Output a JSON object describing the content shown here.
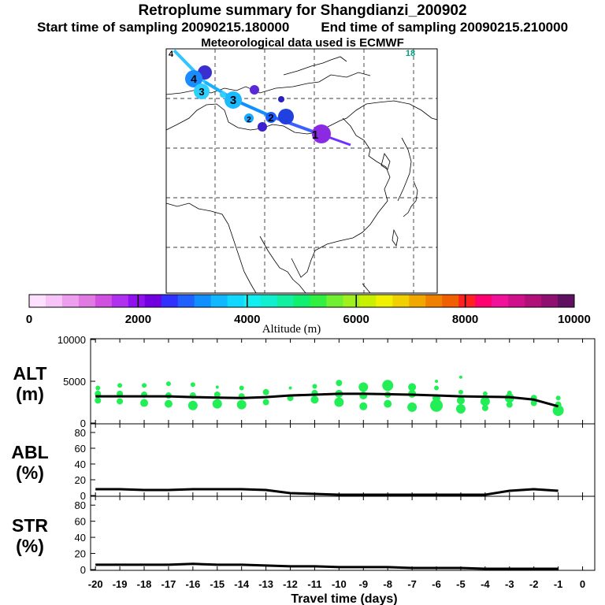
{
  "titles": {
    "main": "Retroplume summary for Shangdianzi_200902",
    "start": "Start time of sampling 20090215.180000",
    "end": "End time of sampling 20090215.210000",
    "met": "Meteorological data used is ECMWF"
  },
  "map": {
    "day_markers": [
      {
        "label": "1",
        "color": "#8a2be2"
      },
      {
        "label": "2",
        "color": "#2040ff"
      },
      {
        "label": "2",
        "color": "#1a8cff"
      },
      {
        "label": "3",
        "color": "#1abaff"
      },
      {
        "label": "3",
        "color": "#2fd0ff"
      },
      {
        "label": "4",
        "color": "#1a8cff"
      },
      {
        "label": "4",
        "color": "#33ccff"
      },
      {
        "label": "18",
        "color": "#00e5a0"
      }
    ]
  },
  "colorbar": {
    "label": "Altitude (m)",
    "tick_labels": [
      "0",
      "2000",
      "4000",
      "6000",
      "8000",
      "10000"
    ],
    "range": [
      0,
      10000
    ],
    "colors": [
      "#fde0fd",
      "#f6c4f6",
      "#ee9eee",
      "#e07ae0",
      "#d050e0",
      "#b030f0",
      "#9010f0",
      "#7000e0",
      "#3030ff",
      "#2060ff",
      "#1090ff",
      "#10b8ff",
      "#10d8ff",
      "#10f0f0",
      "#10f0d0",
      "#10f0a0",
      "#10f070",
      "#30f040",
      "#70f030",
      "#a0f020",
      "#c8f000",
      "#f0f000",
      "#f0d000",
      "#f0a800",
      "#f08000",
      "#f06000",
      "#ff2020",
      "#ff0070",
      "#f0109a",
      "#d0108a",
      "#b01078",
      "#901070",
      "#601060"
    ]
  },
  "chart_data": [
    {
      "type": "line",
      "title": "ALT (m)",
      "ylabel_top": "ALT",
      "ylabel_bottom": "(m)",
      "ylim": [
        0,
        10000
      ],
      "ytick_labels": [
        "10000",
        "5000",
        "0"
      ],
      "x": [
        -20,
        -19,
        -18,
        -17,
        -16,
        -15,
        -14,
        -13,
        -12,
        -11,
        -10,
        -9,
        -8,
        -7,
        -6,
        -5,
        -4,
        -3,
        -2,
        -1
      ],
      "line": [
        3200,
        3200,
        3200,
        3200,
        3100,
        3050,
        3000,
        3100,
        3300,
        3400,
        3500,
        3500,
        3450,
        3400,
        3300,
        3200,
        3150,
        3100,
        2800,
        2000
      ],
      "scatter_color": "#22ee55",
      "scatter": [
        [
          -19.9,
          2700,
          4
        ],
        [
          -19.9,
          3500,
          4
        ],
        [
          -19.9,
          4200,
          3
        ],
        [
          -19,
          2600,
          4
        ],
        [
          -19,
          3500,
          4
        ],
        [
          -19,
          4500,
          3
        ],
        [
          -18,
          2400,
          5
        ],
        [
          -18,
          3400,
          4
        ],
        [
          -18,
          4500,
          3
        ],
        [
          -17,
          2300,
          5
        ],
        [
          -17,
          3300,
          4
        ],
        [
          -17,
          4700,
          3
        ],
        [
          -16,
          2100,
          6
        ],
        [
          -16,
          3300,
          4
        ],
        [
          -16,
          4600,
          3
        ],
        [
          -15,
          2300,
          6
        ],
        [
          -15,
          3400,
          4
        ],
        [
          -15,
          4300,
          2
        ],
        [
          -14,
          2200,
          6
        ],
        [
          -14,
          3200,
          4
        ],
        [
          -14,
          4200,
          3
        ],
        [
          -13,
          2500,
          4
        ],
        [
          -13,
          3700,
          4
        ],
        [
          -12,
          3000,
          4
        ],
        [
          -12,
          4200,
          2
        ],
        [
          -11,
          2800,
          5
        ],
        [
          -11,
          3600,
          4
        ],
        [
          -11,
          4400,
          3
        ],
        [
          -10,
          2500,
          6
        ],
        [
          -10,
          3500,
          5
        ],
        [
          -10,
          4800,
          4
        ],
        [
          -9,
          2000,
          5
        ],
        [
          -9,
          3300,
          5
        ],
        [
          -9,
          4300,
          6
        ],
        [
          -8,
          2300,
          5
        ],
        [
          -8,
          3400,
          4
        ],
        [
          -8,
          4500,
          7
        ],
        [
          -7,
          1900,
          6
        ],
        [
          -7,
          3500,
          5
        ],
        [
          -7,
          4300,
          5
        ],
        [
          -6,
          2100,
          8
        ],
        [
          -6,
          3000,
          5
        ],
        [
          -6,
          4200,
          3
        ],
        [
          -6,
          5000,
          2
        ],
        [
          -5,
          1700,
          6
        ],
        [
          -5,
          2700,
          5
        ],
        [
          -5,
          3700,
          3
        ],
        [
          -5,
          5500,
          2
        ],
        [
          -4,
          1800,
          4
        ],
        [
          -4,
          2600,
          6
        ],
        [
          -4,
          3500,
          3
        ],
        [
          -3,
          2200,
          4
        ],
        [
          -3,
          3000,
          6
        ],
        [
          -3,
          3600,
          3
        ],
        [
          -2,
          2400,
          4
        ],
        [
          -2,
          3000,
          4
        ],
        [
          -1,
          1500,
          7
        ],
        [
          -1,
          2200,
          4
        ],
        [
          -1,
          3000,
          3
        ]
      ]
    },
    {
      "type": "line",
      "title": "ABL (%)",
      "ylabel_top": "ABL",
      "ylabel_bottom": "(%)",
      "ylim": [
        0,
        90
      ],
      "ytick_labels": [
        "80",
        "60",
        "40",
        "20",
        "0"
      ],
      "x": [
        -20,
        -19,
        -18,
        -17,
        -16,
        -15,
        -14,
        -13,
        -12,
        -11,
        -10,
        -9,
        -8,
        -7,
        -6,
        -5,
        -4,
        -3,
        -2,
        -1
      ],
      "line": [
        8,
        8,
        7,
        7,
        8,
        8,
        8,
        7,
        3,
        2,
        1,
        1,
        1,
        1,
        1,
        1,
        1,
        6,
        8,
        6
      ]
    },
    {
      "type": "line",
      "title": "STR (%)",
      "ylabel_top": "STR",
      "ylabel_bottom": "(%)",
      "ylim": [
        0,
        90
      ],
      "ytick_labels": [
        "80",
        "60",
        "40",
        "20",
        "0"
      ],
      "x": [
        -20,
        -19,
        -18,
        -17,
        -16,
        -15,
        -14,
        -13,
        -12,
        -11,
        -10,
        -9,
        -8,
        -7,
        -6,
        -5,
        -4,
        -3,
        -2,
        -1
      ],
      "line": [
        6,
        6,
        6,
        6,
        7,
        6,
        6,
        5,
        4,
        4,
        3,
        3,
        3,
        2,
        2,
        2,
        1,
        1,
        1,
        1
      ]
    }
  ],
  "xaxis": {
    "tick_labels": [
      "-20",
      "-19",
      "-18",
      "-17",
      "-16",
      "-15",
      "-14",
      "-13",
      "-12",
      "-11",
      "-10",
      "-9",
      "-8",
      "-7",
      "-6",
      "-5",
      "-4",
      "-3",
      "-2",
      "-1",
      "0"
    ],
    "label": "Travel time (days)"
  }
}
